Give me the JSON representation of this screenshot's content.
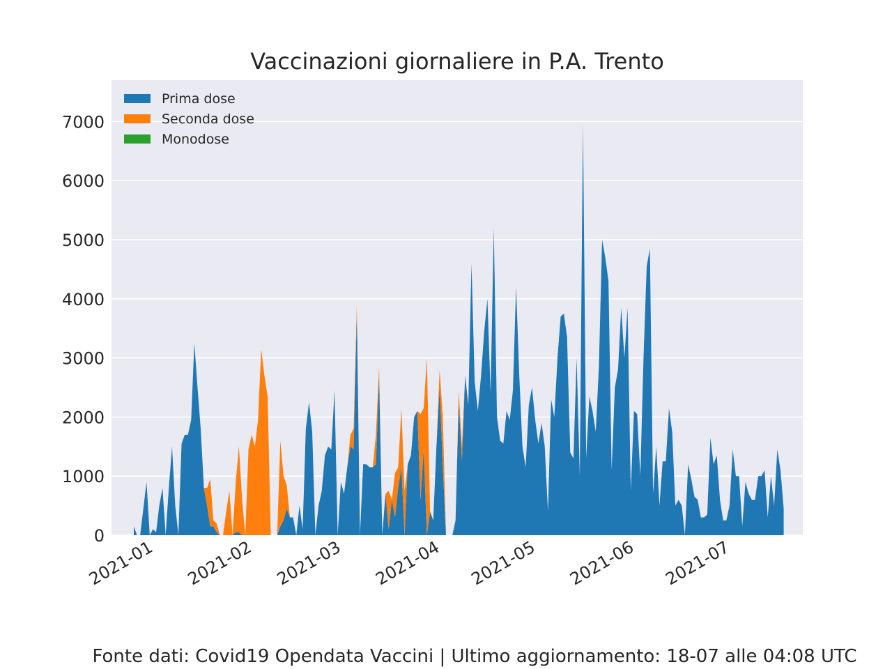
{
  "chart_data": {
    "type": "area",
    "stacked": true,
    "title": "Vaccinazioni giornaliere in P.A. Trento",
    "xlabel": "",
    "ylabel": "",
    "x_start": "2020-12-27",
    "x_end": "2021-07-17",
    "xlim": [
      "2020-12-20",
      "2021-07-25"
    ],
    "ylim": [
      0,
      7700
    ],
    "grid": true,
    "legend_position": "top-left",
    "x_tick_labels": [
      "2021-01",
      "2021-02",
      "2021-03",
      "2021-04",
      "2021-05",
      "2021-06",
      "2021-07"
    ],
    "x_tick_dates": [
      "2021-01-01",
      "2021-02-01",
      "2021-03-01",
      "2021-04-01",
      "2021-05-01",
      "2021-06-01",
      "2021-07-01"
    ],
    "y_ticks": [
      0,
      1000,
      2000,
      3000,
      4000,
      5000,
      6000,
      7000
    ],
    "y_tick_labels": [
      "0",
      "1000",
      "2000",
      "3000",
      "4000",
      "5000",
      "6000",
      "7000"
    ],
    "series": [
      {
        "name": "Prima dose",
        "color": "#1f77b4",
        "values": [
          150,
          0,
          0,
          450,
          900,
          0,
          100,
          50,
          500,
          800,
          0,
          800,
          1500,
          500,
          0,
          1550,
          1700,
          1700,
          1950,
          3250,
          2500,
          1800,
          800,
          500,
          150,
          150,
          50,
          0,
          0,
          0,
          0,
          0,
          50,
          50,
          0,
          0,
          0,
          0,
          0,
          0,
          0,
          0,
          0,
          0,
          0,
          0,
          150,
          250,
          450,
          300,
          300,
          0,
          500,
          100,
          1800,
          2250,
          1750,
          0,
          500,
          750,
          1350,
          1500,
          1450,
          2450,
          0,
          900,
          700,
          1150,
          1500,
          1450,
          3750,
          0,
          1200,
          1200,
          1150,
          1150,
          1200,
          2700,
          0,
          700,
          100,
          600,
          300,
          800,
          1150,
          0,
          1200,
          1350,
          2000,
          2100,
          600,
          1450,
          0,
          400,
          250,
          1500,
          2500,
          1150,
          0,
          0,
          0,
          250,
          2250,
          1250,
          2700,
          2200,
          4600,
          2600,
          2100,
          2700,
          3450,
          4000,
          2400,
          5200,
          2000,
          1600,
          1550,
          2100,
          1950,
          2450,
          4200,
          2700,
          1500,
          1150,
          2200,
          2500,
          1950,
          1550,
          1900,
          1500,
          400,
          2300,
          2000,
          3000,
          3700,
          3750,
          3350,
          1400,
          1300,
          3000,
          1000,
          6950,
          1300,
          2350,
          2100,
          1750,
          2850,
          5000,
          4700,
          4300,
          1100,
          2500,
          2800,
          3850,
          3000,
          3850,
          750,
          2100,
          2050,
          1000,
          3000,
          4550,
          4850,
          700,
          1500,
          500,
          1250,
          1250,
          2150,
          1750,
          500,
          600,
          500,
          0,
          1200,
          950,
          650,
          600,
          300,
          300,
          350,
          1650,
          1200,
          1350,
          600,
          250,
          250,
          500,
          1450,
          1000,
          1000,
          150,
          900,
          700,
          600,
          600,
          1000,
          1000,
          1100,
          300,
          1000,
          500,
          1450,
          1100,
          450
        ]
      },
      {
        "name": "Seconda dose",
        "color": "#ff7f0e",
        "values": [
          0,
          0,
          0,
          0,
          0,
          0,
          0,
          0,
          0,
          0,
          0,
          0,
          0,
          0,
          0,
          0,
          0,
          0,
          0,
          0,
          0,
          0,
          0,
          300,
          800,
          100,
          150,
          0,
          0,
          400,
          750,
          0,
          850,
          1450,
          600,
          0,
          1450,
          1700,
          1500,
          1950,
          3150,
          2700,
          2350,
          0,
          0,
          0,
          1450,
          750,
          400,
          0,
          0,
          0,
          0,
          0,
          0,
          0,
          0,
          0,
          0,
          0,
          0,
          0,
          0,
          0,
          0,
          0,
          0,
          0,
          200,
          350,
          150,
          0,
          0,
          0,
          0,
          0,
          500,
          150,
          0,
          0,
          650,
          0,
          750,
          350,
          1000,
          750,
          0,
          0,
          0,
          0,
          1450,
          700,
          3000,
          0,
          0,
          0,
          300,
          850,
          0,
          0,
          0,
          0,
          200,
          250,
          0,
          0,
          0,
          0,
          0,
          0,
          0,
          0,
          0,
          0,
          0,
          0,
          0,
          0,
          0,
          0,
          0,
          0,
          0,
          0,
          0,
          0,
          0,
          0,
          0,
          0,
          0,
          0,
          0,
          0,
          0,
          0,
          0,
          0,
          0,
          0,
          0,
          0,
          0,
          0,
          0,
          0,
          0,
          0,
          0,
          0,
          0,
          0,
          0,
          0,
          0,
          0,
          0,
          0,
          0,
          0,
          0,
          0,
          0,
          0,
          0,
          0,
          0,
          0,
          0,
          0,
          0,
          0,
          0,
          0,
          0,
          0,
          0,
          0,
          0,
          0,
          0,
          0,
          0,
          0,
          0,
          0,
          0,
          0,
          0,
          0,
          0,
          0,
          0,
          0,
          0,
          0,
          0,
          0,
          0,
          0,
          0,
          0,
          0,
          0,
          0,
          0,
          0,
          0,
          0,
          0,
          0
        ]
      },
      {
        "name": "Monodose",
        "color": "#2ca02c",
        "values": [
          0,
          0,
          0,
          0,
          0,
          0,
          0,
          0,
          0,
          0,
          0,
          0,
          0,
          0,
          0,
          0,
          0,
          0,
          0,
          0,
          0,
          0,
          0,
          0,
          0,
          0,
          0,
          0,
          0,
          0,
          0,
          0,
          0,
          0,
          0,
          0,
          0,
          0,
          0,
          0,
          0,
          0,
          0,
          0,
          0,
          0,
          0,
          0,
          0,
          0,
          0,
          0,
          0,
          0,
          0,
          0,
          0,
          0,
          0,
          0,
          0,
          0,
          0,
          0,
          0,
          0,
          0,
          0,
          0,
          0,
          0,
          0,
          0,
          0,
          0,
          0,
          0,
          0,
          0,
          0,
          0,
          0,
          0,
          0,
          0,
          0,
          0,
          0,
          0,
          0,
          0,
          0,
          0,
          0,
          0,
          0,
          0,
          0,
          0,
          0,
          0,
          0,
          0,
          0,
          0,
          0,
          0,
          0,
          0,
          0,
          0,
          0,
          0,
          0,
          0,
          0,
          0,
          0,
          0,
          0,
          0,
          0,
          0,
          0,
          0,
          0,
          0,
          0,
          0,
          0,
          0,
          0,
          0,
          0,
          0,
          0,
          0,
          0,
          0,
          0,
          0,
          0,
          0,
          0,
          0,
          0,
          0,
          0,
          0,
          0,
          0,
          0,
          0,
          0,
          0,
          0,
          0,
          0,
          0,
          0,
          0,
          0,
          0,
          0,
          0,
          0,
          0,
          0,
          0,
          0,
          0,
          0,
          0,
          0,
          0,
          0,
          0,
          0,
          0,
          0,
          0,
          0,
          0,
          0,
          0,
          0,
          0,
          0,
          0,
          0,
          0,
          0,
          0,
          0,
          0,
          0,
          0,
          0,
          0,
          0,
          0,
          0,
          0,
          0,
          0,
          0,
          0,
          0,
          0,
          0,
          0,
          0,
          0,
          0,
          0,
          0,
          0,
          0
        ]
      }
    ],
    "colors": {
      "plot_background": "#eaeaf2",
      "grid": "#ffffff",
      "text": "#262626"
    }
  },
  "footer": {
    "source": "Fonte dati: Covid19 Opendata Vaccini | Ultimo aggiornamento: 18-07 alle 04:08 UTC"
  }
}
